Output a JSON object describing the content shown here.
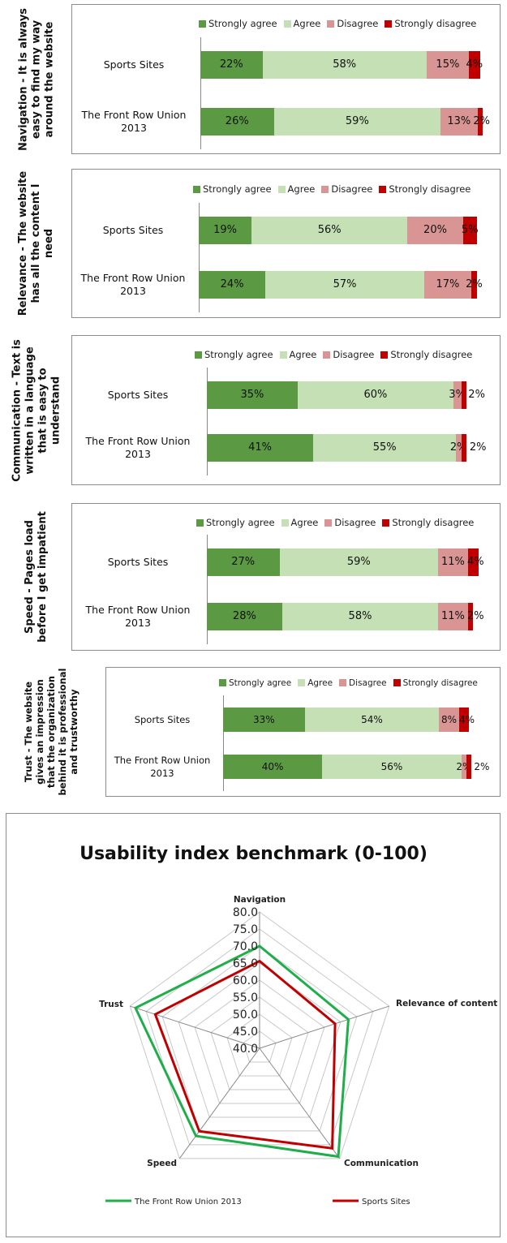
{
  "colors": {
    "strongly_agree": "#5b9a42",
    "agree": "#c4e0b4",
    "disagree": "#d99594",
    "strongly_disagree": "#c00000",
    "radar_front_row": "#1fae4a",
    "radar_sports": "#c00000"
  },
  "legend": [
    "Strongly agree",
    "Agree",
    "Disagree",
    "Strongly disagree"
  ],
  "chart_data": [
    {
      "type": "bar",
      "orientation": "horizontal",
      "stacked": true,
      "ylabel": "Navigation - It is always easy to find my way around the website",
      "categories": [
        "Sports Sites",
        "The Front Row Union 2013"
      ],
      "series": [
        {
          "name": "Strongly agree",
          "values": [
            22,
            26
          ]
        },
        {
          "name": "Agree",
          "values": [
            58,
            59
          ]
        },
        {
          "name": "Disagree",
          "values": [
            15,
            13
          ]
        },
        {
          "name": "Strongly disagree",
          "values": [
            4,
            2
          ]
        }
      ],
      "legend_position": "top"
    },
    {
      "type": "bar",
      "orientation": "horizontal",
      "stacked": true,
      "ylabel": "Relevance - The website has all the content I need",
      "categories": [
        "Sports Sites",
        "The Front Row Union 2013"
      ],
      "series": [
        {
          "name": "Strongly agree",
          "values": [
            19,
            24
          ]
        },
        {
          "name": "Agree",
          "values": [
            56,
            57
          ]
        },
        {
          "name": "Disagree",
          "values": [
            20,
            17
          ]
        },
        {
          "name": "Strongly disagree",
          "values": [
            5,
            2
          ]
        }
      ],
      "legend_position": "top"
    },
    {
      "type": "bar",
      "orientation": "horizontal",
      "stacked": true,
      "ylabel": "Communication - Text is written in a language that is easy to understand",
      "categories": [
        "Sports Sites",
        "The Front Row Union 2013"
      ],
      "series": [
        {
          "name": "Strongly agree",
          "values": [
            35,
            41
          ]
        },
        {
          "name": "Agree",
          "values": [
            60,
            55
          ]
        },
        {
          "name": "Disagree",
          "values": [
            3,
            2
          ]
        },
        {
          "name": "Strongly disagree",
          "values": [
            2,
            2
          ]
        }
      ],
      "legend_position": "top"
    },
    {
      "type": "bar",
      "orientation": "horizontal",
      "stacked": true,
      "ylabel": "Speed - Pages load before I get impatient",
      "categories": [
        "Sports Sites",
        "The Front Row Union 2013"
      ],
      "series": [
        {
          "name": "Strongly agree",
          "values": [
            27,
            28
          ]
        },
        {
          "name": "Agree",
          "values": [
            59,
            58
          ]
        },
        {
          "name": "Disagree",
          "values": [
            11,
            11
          ]
        },
        {
          "name": "Strongly disagree",
          "values": [
            4,
            2
          ]
        }
      ],
      "legend_position": "top"
    },
    {
      "type": "bar",
      "orientation": "horizontal",
      "stacked": true,
      "ylabel": "Trust - The website gives an impression that the organization behind it is professional and trustworthy",
      "categories": [
        "Sports Sites",
        "The Front Row Union 2013"
      ],
      "series": [
        {
          "name": "Strongly agree",
          "values": [
            33,
            40
          ]
        },
        {
          "name": "Agree",
          "values": [
            54,
            56
          ]
        },
        {
          "name": "Disagree",
          "values": [
            8,
            2
          ]
        },
        {
          "name": "Strongly disagree",
          "values": [
            4,
            2
          ]
        }
      ],
      "legend_position": "top"
    },
    {
      "type": "radar",
      "title": "Usability index benchmark (0-100)",
      "categories": [
        "Navigation",
        "Relevance of content",
        "Communication",
        "Speed",
        "Trust"
      ],
      "rlim": [
        40,
        80
      ],
      "ticks": [
        "40.0",
        "45.0",
        "50.0",
        "55.0",
        "60.0",
        "65.0",
        "70.0",
        "75.0",
        "80.0"
      ],
      "series": [
        {
          "name": "The Front Row Union 2013",
          "values": [
            70.0,
            67.4,
            79.3,
            71.8,
            78.3
          ]
        },
        {
          "name": "Sports Sites",
          "values": [
            65.6,
            63.3,
            76.3,
            70.1,
            72.2
          ]
        }
      ],
      "legend_position": "bottom"
    }
  ]
}
